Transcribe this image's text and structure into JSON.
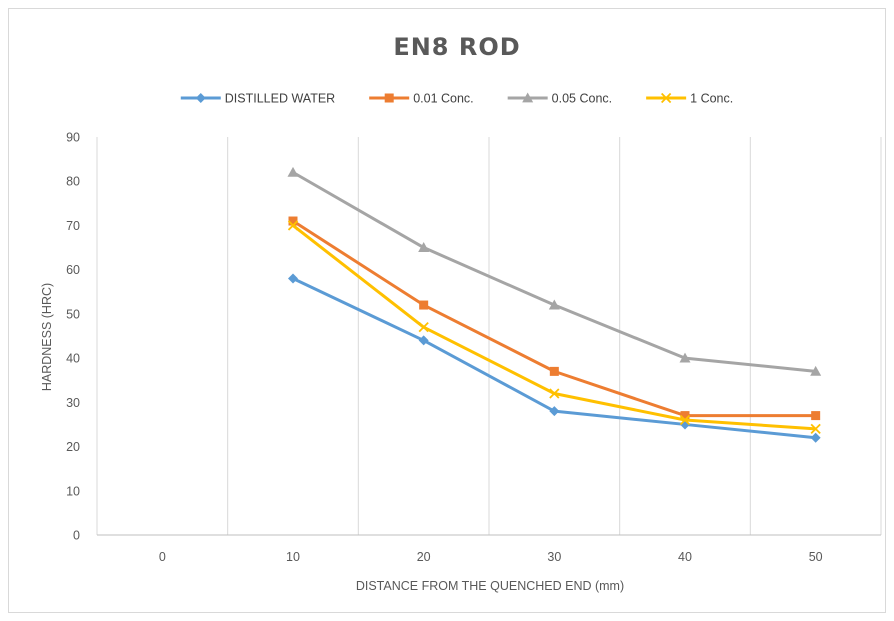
{
  "chart_data": {
    "type": "line",
    "title": "EN8 ROD",
    "xlabel": "DISTANCE FROM THE QUENCHED END (mm)",
    "ylabel": "HARDNESS (HRC)",
    "categories": [
      "0",
      "10",
      "20",
      "30",
      "40",
      "50"
    ],
    "ylim": [
      0,
      90
    ],
    "yticks": [
      0,
      10,
      20,
      30,
      40,
      50,
      60,
      70,
      80,
      90
    ],
    "grid": "vertical",
    "legend_position": "top",
    "series": [
      {
        "name": "DISTILLED WATER",
        "color": "#5b9bd5",
        "marker": "diamond",
        "values": [
          null,
          58,
          44,
          28,
          25,
          22
        ]
      },
      {
        "name": "0.01 Conc.",
        "color": "#ed7d31",
        "marker": "square",
        "values": [
          null,
          71,
          52,
          37,
          27,
          27
        ]
      },
      {
        "name": "0.05 Conc.",
        "color": "#a5a5a5",
        "marker": "triangle",
        "values": [
          null,
          82,
          65,
          52,
          40,
          37
        ]
      },
      {
        "name": "1 Conc.",
        "color": "#ffc000",
        "marker": "x",
        "values": [
          null,
          70,
          47,
          32,
          26,
          24
        ]
      }
    ]
  }
}
